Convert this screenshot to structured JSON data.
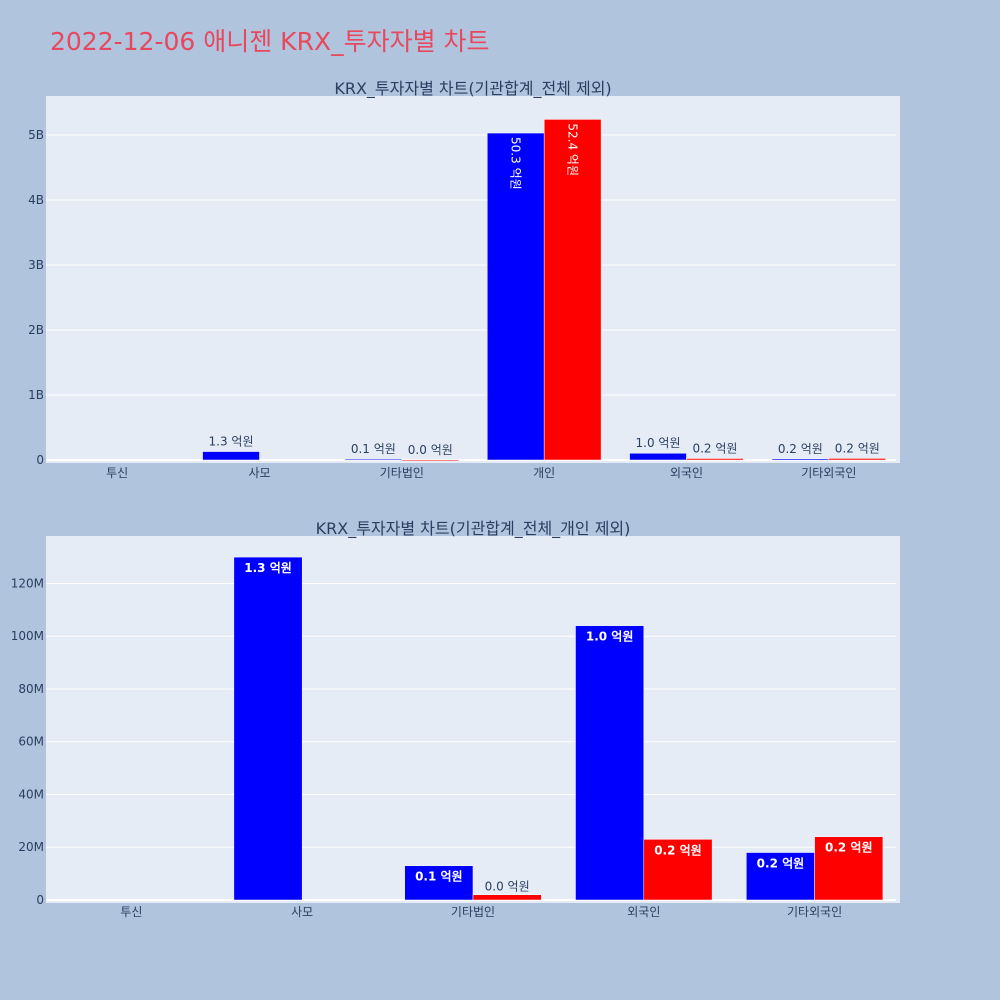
{
  "title": "2022-12-06 애니젠 KRX_투자자별 차트",
  "colors": {
    "background": "#b0c4de",
    "plot_bg": "#e5ecf6",
    "buy": "#0000ff",
    "sell": "#ff0000",
    "title": "#e8485e"
  },
  "chart_data": [
    {
      "type": "bar",
      "title": "KRX_투자자별 차트(기관합계_전체 제외)",
      "categories": [
        "투신",
        "사모",
        "기타법인",
        "개인",
        "외국인",
        "기타외국인"
      ],
      "ylim": [
        0,
        5600000000
      ],
      "yticks": [
        0,
        1000000000,
        2000000000,
        3000000000,
        4000000000,
        5000000000
      ],
      "ytick_labels": [
        "0",
        "1B",
        "2B",
        "3B",
        "4B",
        "5B"
      ],
      "series": [
        {
          "color": "#0000ff",
          "values": [
            0,
            130000000,
            13000000,
            5030000000,
            104000000,
            18000000
          ],
          "labels": [
            "",
            "1.3 억원",
            "0.1 억원",
            "50.3 억원",
            "1.0 억원",
            "0.2 억원"
          ]
        },
        {
          "color": "#ff0000",
          "values": [
            0,
            0,
            2000000,
            5240000000,
            23000000,
            24000000
          ],
          "labels": [
            "",
            "",
            "0.0 억원",
            "52.4 억원",
            "0.2 억원",
            "0.2 억원"
          ]
        }
      ]
    },
    {
      "type": "bar",
      "title": "KRX_투자자별 차트(기관합계_전체_개인 제외)",
      "categories": [
        "투신",
        "사모",
        "기타법인",
        "외국인",
        "기타외국인"
      ],
      "ylim": [
        0,
        138000000
      ],
      "yticks": [
        0,
        20000000,
        40000000,
        60000000,
        80000000,
        100000000,
        120000000
      ],
      "ytick_labels": [
        "0",
        "20M",
        "40M",
        "60M",
        "80M",
        "100M",
        "120M"
      ],
      "series": [
        {
          "color": "#0000ff",
          "values": [
            0,
            130000000,
            13000000,
            104000000,
            18000000
          ],
          "labels": [
            "",
            "1.3 억원",
            "0.1 억원",
            "1.0 억원",
            "0.2 억원"
          ]
        },
        {
          "color": "#ff0000",
          "values": [
            0,
            0,
            2000000,
            23000000,
            24000000
          ],
          "labels": [
            "",
            "",
            "0.0 억원",
            "0.2 억원",
            "0.2 억원"
          ]
        }
      ]
    }
  ]
}
